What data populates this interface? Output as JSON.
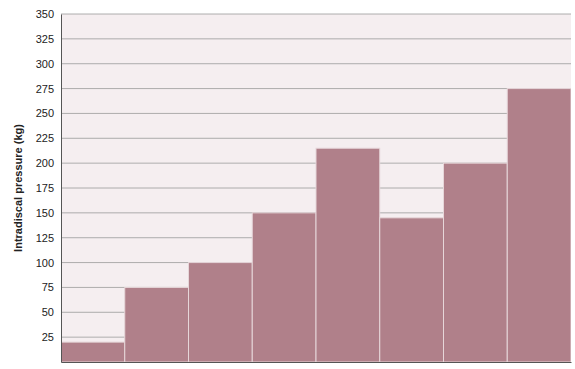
{
  "chart_data": {
    "type": "bar",
    "y_label": "Intradiscal pressure (kg)",
    "categories": [
      null,
      null,
      null,
      null,
      null,
      null,
      null,
      null
    ],
    "values": [
      20,
      75,
      100,
      150,
      215,
      145,
      200,
      275
    ],
    "color": "#b0808a",
    "ylim": [
      0,
      350
    ],
    "yticks": [
      25,
      50,
      75,
      100,
      125,
      150,
      175,
      200,
      225,
      250,
      275,
      300,
      325,
      350
    ],
    "grid": true,
    "tick_labels": "y"
  }
}
